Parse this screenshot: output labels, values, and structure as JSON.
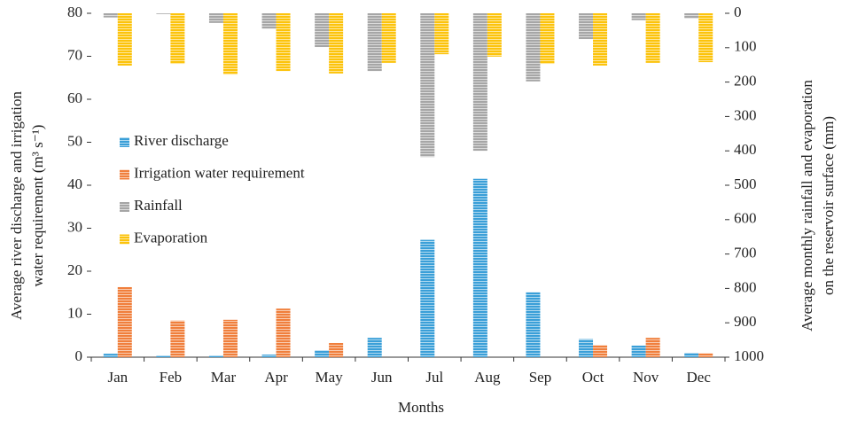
{
  "chart_data": {
    "type": "bar",
    "categories": [
      "Jan",
      "Feb",
      "Mar",
      "Apr",
      "May",
      "Jun",
      "Jul",
      "Aug",
      "Sep",
      "Oct",
      "Nov",
      "Dec"
    ],
    "series": [
      {
        "name": "River discharge",
        "color": "#3a9fd8",
        "values": [
          0.8,
          0.4,
          0.4,
          0.6,
          1.6,
          4.5,
          27.3,
          41.5,
          15.1,
          4.2,
          2.7,
          1.0
        ]
      },
      {
        "name": "Irrigation water requirement",
        "color": "#f07f3c",
        "values": [
          16.3,
          8.5,
          8.7,
          11.3,
          3.3,
          0,
          0,
          0,
          0,
          2.8,
          4.5,
          0.9
        ]
      },
      {
        "name": "Rainfall",
        "color": "#a6a6a6",
        "axis": "y2",
        "values": [
          12,
          2,
          28,
          45,
          98,
          168,
          418,
          400,
          198,
          75,
          20,
          15
        ]
      },
      {
        "name": "Evaporation",
        "color": "#fcc30b",
        "axis": "y2",
        "values": [
          152,
          147,
          178,
          168,
          175,
          144,
          119,
          126,
          147,
          152,
          144,
          142
        ]
      }
    ],
    "xlabel": "Months",
    "ylabel": [
      "Average river discharge and irrigation",
      "water requirement (m³ s⁻¹)"
    ],
    "y2label": [
      "Average monthly rainfall  and evaporation",
      "on the reservoir surface (mm)"
    ],
    "ylim": [
      0,
      80
    ],
    "yticks": [
      0,
      10,
      20,
      30,
      40,
      50,
      60,
      70,
      80
    ],
    "y2lim": [
      1000,
      0
    ],
    "y2ticks": [
      0,
      100,
      200,
      300,
      400,
      500,
      600,
      700,
      800,
      900,
      1000
    ],
    "legend": "left",
    "grid": false
  }
}
